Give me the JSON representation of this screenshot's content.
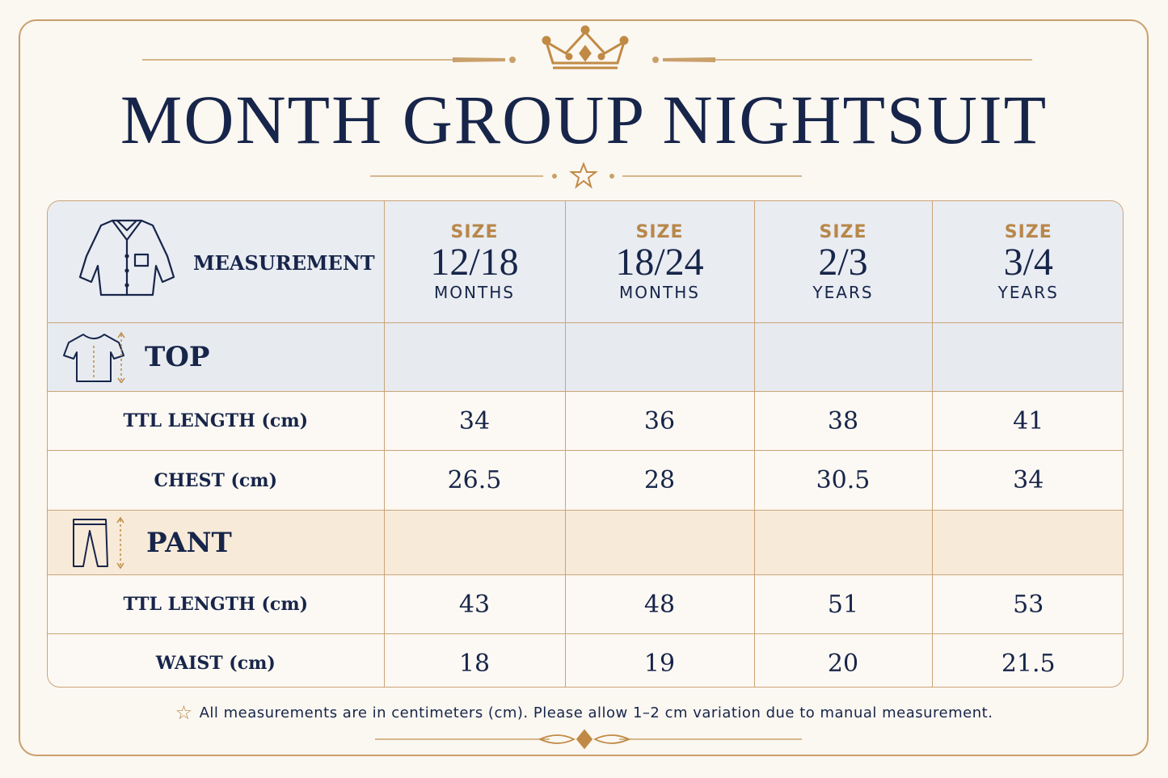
{
  "title": "MONTH GROUP NIGHTSUIT",
  "colors": {
    "navy": "#17254a",
    "gold": "#b8874a",
    "border": "#caa478",
    "header_bg": "#e9ecf1",
    "top_bg": "#e7ebf0",
    "pant_bg": "#f8ead8",
    "page_bg": "#fbf7f1"
  },
  "icons": [
    "crown-icon",
    "star-icon",
    "shirt-icon",
    "tshirt-icon",
    "pants-icon",
    "flourish-icon"
  ],
  "table": {
    "measurement_label": "MEASUREMENT",
    "sizes": [
      {
        "label": "SIZE",
        "value": "12/18",
        "unit": "MONTHS"
      },
      {
        "label": "SIZE",
        "value": "18/24",
        "unit": "MONTHS"
      },
      {
        "label": "SIZE",
        "value": "2/3",
        "unit": "YEARS"
      },
      {
        "label": "SIZE",
        "value": "3/4",
        "unit": "YEARS"
      }
    ],
    "top": {
      "label": "TOP",
      "rows": [
        {
          "label": "TTL LENGTH (cm)",
          "values": [
            "34",
            "36",
            "38",
            "41"
          ]
        },
        {
          "label": "CHEST (cm)",
          "values": [
            "26.5",
            "28",
            "30.5",
            "34"
          ]
        }
      ]
    },
    "pant": {
      "label": "PANT",
      "rows": [
        {
          "label": "TTL LENGTH (cm)",
          "values": [
            "43",
            "48",
            "51",
            "53"
          ]
        },
        {
          "label": "WAIST (cm)",
          "values": [
            "18",
            "19",
            "20",
            "21.5"
          ]
        }
      ]
    }
  },
  "note": "All measurements are in centimeters (cm). Please allow 1–2 cm variation due to manual measurement."
}
